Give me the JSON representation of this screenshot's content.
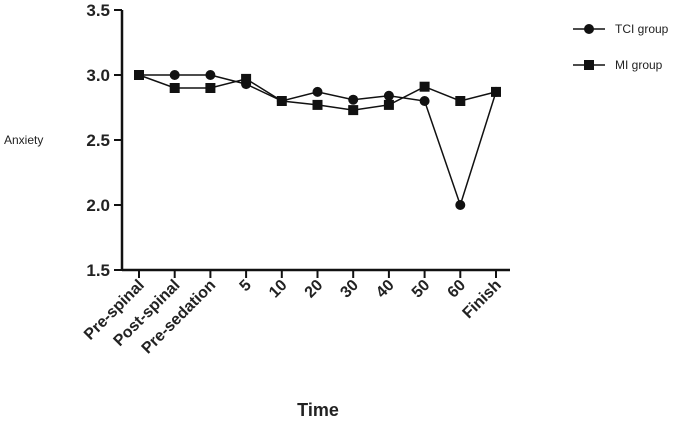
{
  "chart_data": {
    "type": "line",
    "categories": [
      "Pre-spinal",
      "Post-spinal",
      "Pre-sedation",
      "5",
      "10",
      "20",
      "30",
      "40",
      "50",
      "60",
      "Finish"
    ],
    "series": [
      {
        "name": "TCI group",
        "marker": "circle",
        "color": "#111111",
        "values": [
          3.0,
          3.0,
          3.0,
          2.93,
          2.8,
          2.87,
          2.81,
          2.84,
          2.8,
          2.0,
          2.87
        ]
      },
      {
        "name": "MI group",
        "marker": "square",
        "color": "#111111",
        "values": [
          3.0,
          2.9,
          2.9,
          2.97,
          2.8,
          2.77,
          2.73,
          2.77,
          2.91,
          2.8,
          2.87
        ]
      }
    ],
    "xlabel": "Time",
    "ylabel": "Anxiety",
    "ylim": [
      1.5,
      3.5
    ],
    "yticks": [
      "1.5",
      "2.0",
      "2.5",
      "3.0",
      "3.5"
    ],
    "grid": false,
    "legend_position": "top-right"
  }
}
